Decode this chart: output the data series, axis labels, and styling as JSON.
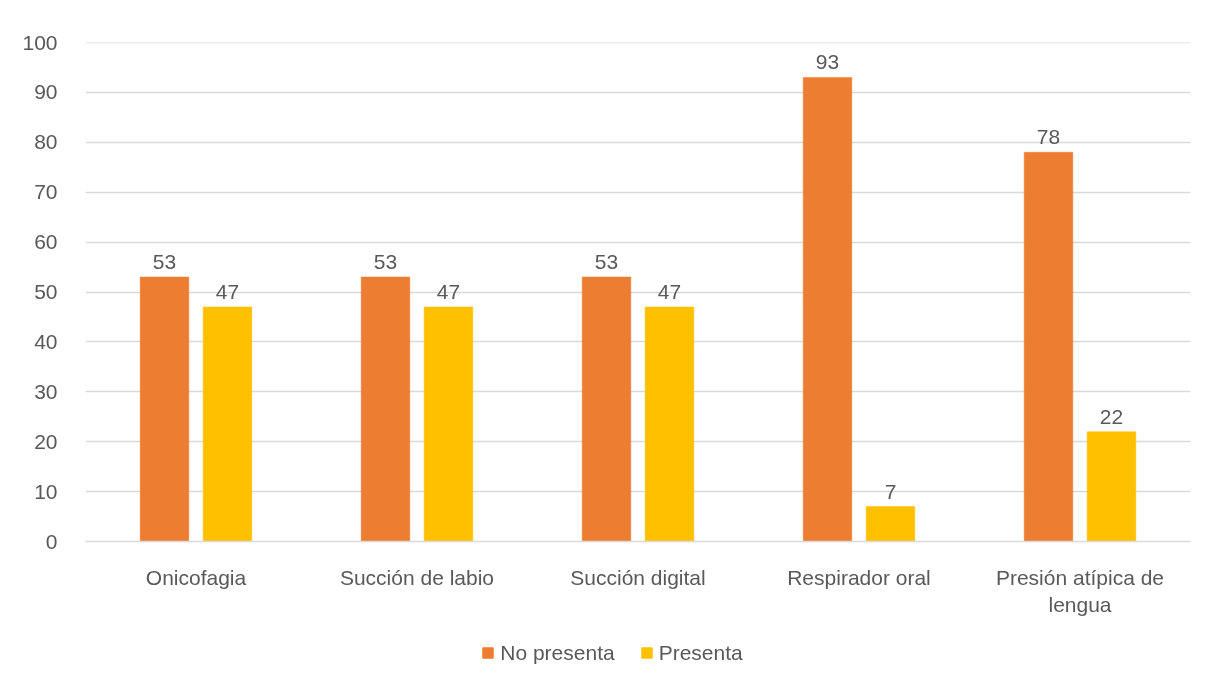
{
  "chart_data": {
    "type": "bar",
    "categories": [
      "Onicofagia",
      "Succión de labio",
      "Succión digital",
      "Respirador oral",
      "Presión atípica de lengua"
    ],
    "series": [
      {
        "name": "No presenta",
        "color": "#ed7d31",
        "values": [
          53,
          53,
          53,
          93,
          78
        ]
      },
      {
        "name": "Presenta",
        "color": "#ffc000",
        "values": [
          47,
          47,
          47,
          7,
          22
        ]
      }
    ],
    "ylim": [
      0,
      100
    ],
    "yticks": [
      0,
      10,
      20,
      30,
      40,
      50,
      60,
      70,
      80,
      90,
      100
    ],
    "grid": "y",
    "legend": "bottom",
    "data_labels": true
  }
}
